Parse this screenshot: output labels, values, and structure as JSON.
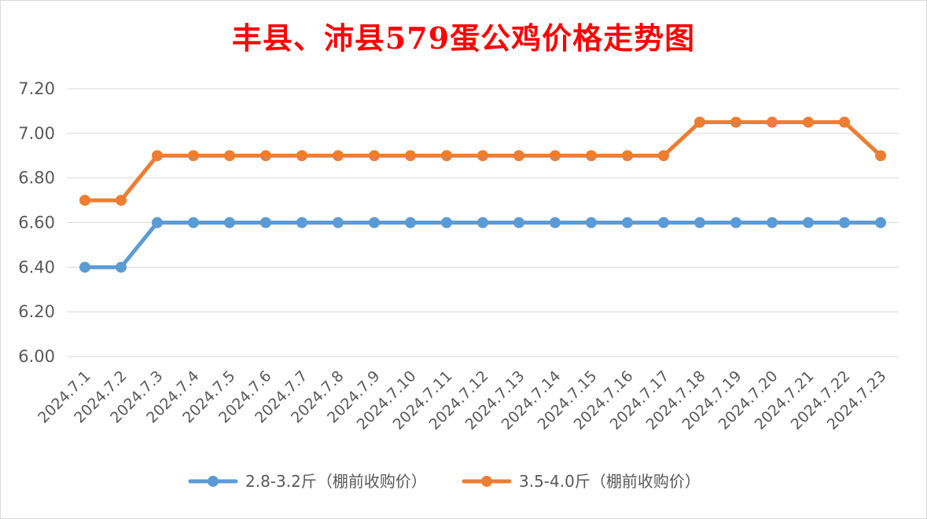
{
  "chart_data": {
    "type": "line",
    "title": "丰县、沛县579蛋公鸡价格走势图",
    "xlabel": "",
    "ylabel": "",
    "ylim": [
      6.0,
      7.2
    ],
    "yticks": [
      "6.00",
      "6.20",
      "6.40",
      "6.60",
      "6.80",
      "7.00",
      "7.20"
    ],
    "grid": true,
    "legend_position": "bottom",
    "categories": [
      "2024.7.1",
      "2024.7.2",
      "2024.7.3",
      "2024.7.4",
      "2024.7.5",
      "2024.7.6",
      "2024.7.7",
      "2024.7.8",
      "2024.7.9",
      "2024.7.10",
      "2024.7.11",
      "2024.7.12",
      "2024.7.13",
      "2024.7.14",
      "2024.7.15",
      "2024.7.16",
      "2024.7.17",
      "2024.7.18",
      "2024.7.19",
      "2024.7.20",
      "2024.7.21",
      "2024.7.22",
      "2024.7.23"
    ],
    "series": [
      {
        "name": "2.8-3.2斤（棚前收购价）",
        "color": "#5b9bd5",
        "values": [
          6.4,
          6.4,
          6.6,
          6.6,
          6.6,
          6.6,
          6.6,
          6.6,
          6.6,
          6.6,
          6.6,
          6.6,
          6.6,
          6.6,
          6.6,
          6.6,
          6.6,
          6.6,
          6.6,
          6.6,
          6.6,
          6.6,
          6.6
        ]
      },
      {
        "name": "3.5-4.0斤（棚前收购价）",
        "color": "#ed7d31",
        "values": [
          6.7,
          6.7,
          6.9,
          6.9,
          6.9,
          6.9,
          6.9,
          6.9,
          6.9,
          6.9,
          6.9,
          6.9,
          6.9,
          6.9,
          6.9,
          6.9,
          6.9,
          7.05,
          7.05,
          7.05,
          7.05,
          7.05,
          6.9
        ]
      }
    ]
  }
}
